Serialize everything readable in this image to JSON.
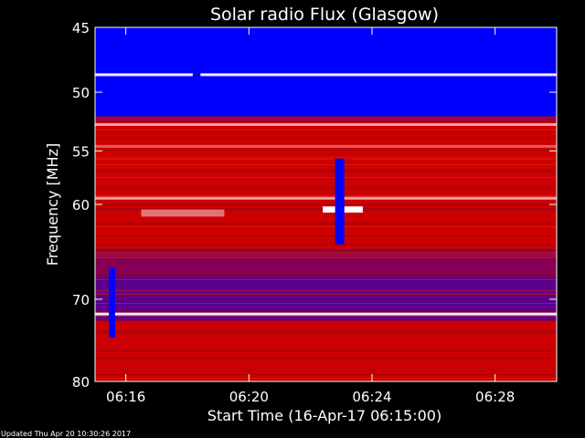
{
  "chart_data": {
    "type": "heatmap",
    "title": "Solar radio Flux (Glasgow)",
    "xlabel": "Start Time (16-Apr-17 06:15:00)",
    "ylabel": "Frequency [MHz]",
    "footer": "Updated Thu Apr 20 10:30:26 2017",
    "x_unit": "minutes after 06:15:00",
    "xlim": [
      0,
      15.0
    ],
    "ylim": [
      45,
      80
    ],
    "y_ticks": [
      {
        "value": 45,
        "label": "45"
      },
      {
        "value": 50,
        "label": "50"
      },
      {
        "value": 55,
        "label": "55"
      },
      {
        "value": 60,
        "label": "60"
      },
      {
        "value": 70,
        "label": "70"
      },
      {
        "value": 80,
        "label": "80"
      }
    ],
    "x_ticks": [
      {
        "value": 1,
        "label": "06:16"
      },
      {
        "value": 5,
        "label": "06:20"
      },
      {
        "value": 9,
        "label": "06:24"
      },
      {
        "value": 13,
        "label": "06:28"
      }
    ],
    "colors": {
      "low": "#0000ff",
      "mid": "#cc0000",
      "high": "#ffffff",
      "dark": "#000088"
    },
    "background_bands": [
      {
        "from": 45,
        "to": 52.0,
        "level": 0.0
      },
      {
        "from": 52.0,
        "to": 52.5,
        "level": 0.35
      },
      {
        "from": 52.5,
        "to": 64.5,
        "level": 0.45
      },
      {
        "from": 64.5,
        "to": 67.5,
        "level": 0.3
      },
      {
        "from": 67.5,
        "to": 72.5,
        "level": 0.2
      },
      {
        "from": 72.5,
        "to": 80,
        "level": 0.45
      }
    ],
    "bright_lines": [
      {
        "freq": 48.6,
        "level": 0.95
      },
      {
        "freq": 52.7,
        "level": 0.8
      },
      {
        "freq": 54.6,
        "level": 0.65
      },
      {
        "freq": 59.4,
        "level": 0.8
      },
      {
        "freq": 71.7,
        "level": 0.95
      }
    ],
    "bursts": [
      {
        "t_start": 7.4,
        "t_end": 8.7,
        "f_start": 60.2,
        "f_end": 60.8,
        "level": 1.0
      },
      {
        "t_start": 1.5,
        "t_end": 4.2,
        "f_start": 60.5,
        "f_end": 61.2,
        "level": 0.7
      }
    ],
    "dropouts": [
      {
        "t": 7.95,
        "width": 0.3,
        "f_start": 55.7,
        "f_end": 64.0
      },
      {
        "t": 0.55,
        "width": 0.2,
        "f_start": 66.5,
        "f_end": 74.5
      },
      {
        "t": 3.3,
        "width": 0.25,
        "f_start": 45,
        "f_end": 50.5
      }
    ]
  }
}
